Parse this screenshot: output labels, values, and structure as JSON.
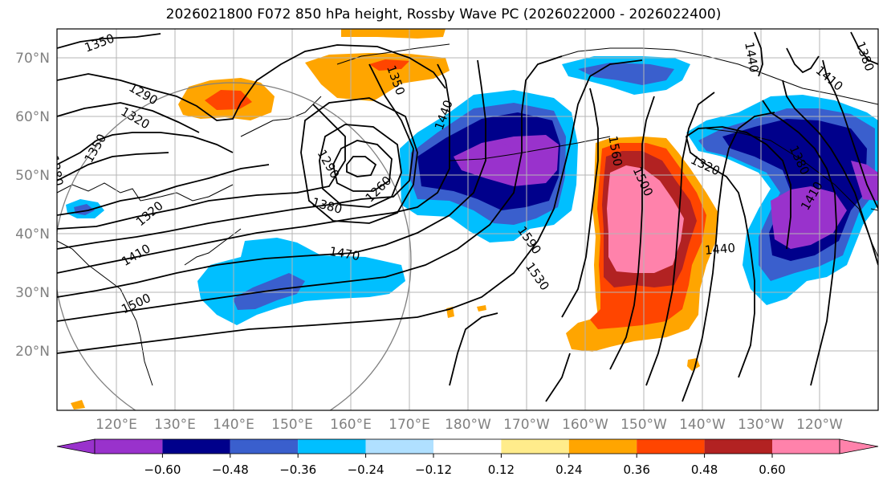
{
  "title": "2026021800 F072 850 hPa height, Rossby Wave PC (2026022000 - 2026022400)",
  "lat_labels": [
    "70°N",
    "60°N",
    "50°N",
    "40°N",
    "30°N",
    "20°N"
  ],
  "lon_labels": [
    "120°E",
    "130°E",
    "140°E",
    "150°E",
    "160°E",
    "170°E",
    "180°W",
    "170°W",
    "160°W",
    "150°W",
    "140°W",
    "130°W",
    "120°W"
  ],
  "contour_labels": [
    "1350",
    "1290",
    "1320",
    "1350",
    "1380",
    "1320",
    "1410",
    "1500",
    "1290",
    "1260",
    "1380",
    "1470",
    "1350",
    "1440",
    "1590",
    "1530",
    "1500",
    "1560",
    "1320",
    "1440",
    "1380",
    "1410",
    "1410",
    "1440",
    "1380"
  ],
  "colorbar": {
    "tick_labels": [
      "−0.60",
      "−0.48",
      "−0.36",
      "−0.24",
      "−0.12",
      "0.12",
      "0.24",
      "0.36",
      "0.48",
      "0.60"
    ],
    "colors": [
      "#9932cc",
      "#00008b",
      "#3a5fcd",
      "#00bfff",
      "#b0e0ff",
      "#ffffff",
      "#ffec8b",
      "#ffa500",
      "#ff4500",
      "#b22222",
      "#ff82ab"
    ]
  },
  "colors": {
    "frame": "#000000",
    "grid": "#b4b4b4",
    "contour": "#000000",
    "tick_text": "#808080"
  }
}
